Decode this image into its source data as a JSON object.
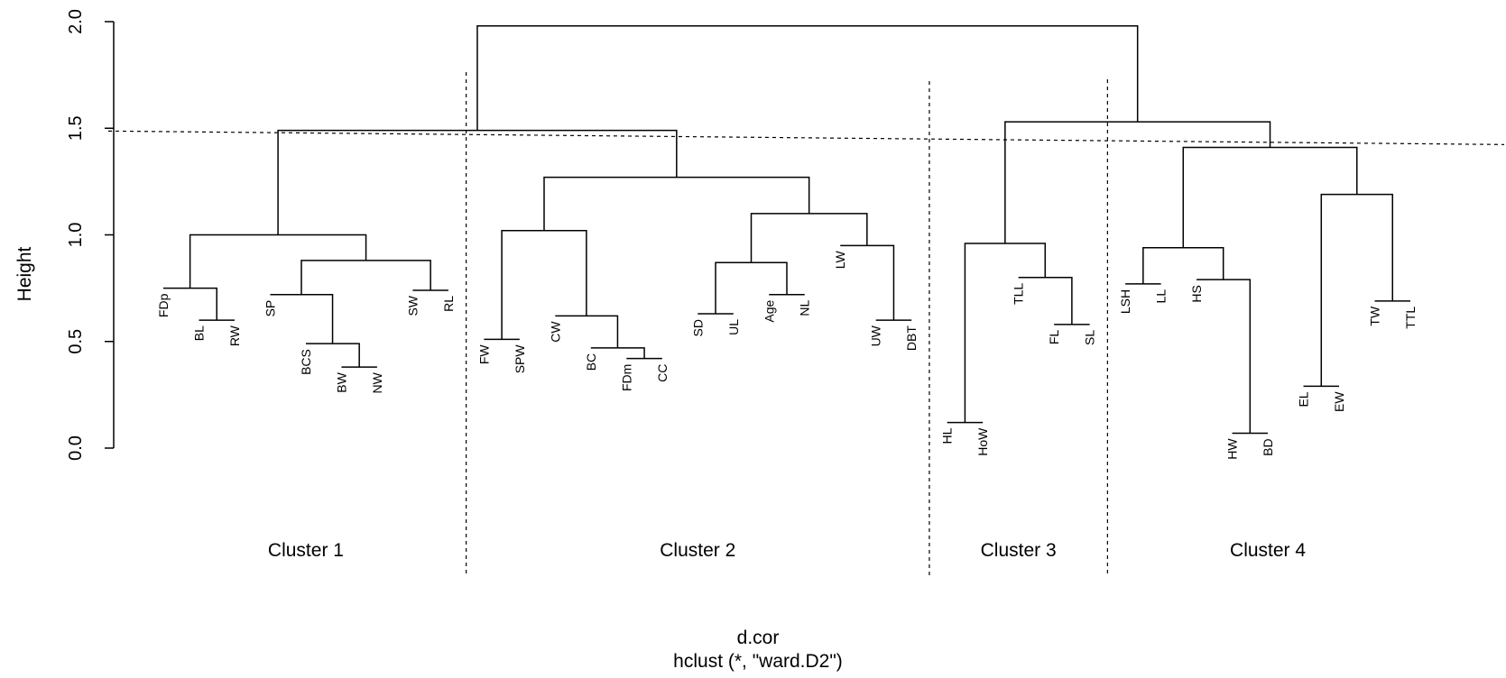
{
  "chart_data": {
    "type": "dendrogram",
    "ylabel": "Height",
    "ylim": [
      0,
      2.0
    ],
    "yticks": [
      0.0,
      0.5,
      1.0,
      1.5,
      2.0
    ],
    "ytick_labels": [
      "0.0",
      "0.5",
      "1.0",
      "1.5",
      "2.0"
    ],
    "cut_height": 1.47,
    "leaves": [
      {
        "label": "FDp",
        "h": 0.75
      },
      {
        "label": "BL",
        "h": 0.6
      },
      {
        "label": "RW",
        "h": 0.6
      },
      {
        "label": "SP",
        "h": 0.72
      },
      {
        "label": "BCS",
        "h": 0.49
      },
      {
        "label": "BW",
        "h": 0.38
      },
      {
        "label": "NW",
        "h": 0.38
      },
      {
        "label": "SW",
        "h": 0.74
      },
      {
        "label": "RL",
        "h": 0.74
      },
      {
        "label": "FW",
        "h": 0.51
      },
      {
        "label": "SPW",
        "h": 0.51
      },
      {
        "label": "CW",
        "h": 0.62
      },
      {
        "label": "BC",
        "h": 0.47
      },
      {
        "label": "FDm",
        "h": 0.42
      },
      {
        "label": "CC",
        "h": 0.42
      },
      {
        "label": "SD",
        "h": 0.63
      },
      {
        "label": "UL",
        "h": 0.63
      },
      {
        "label": "Age",
        "h": 0.72
      },
      {
        "label": "NL",
        "h": 0.72
      },
      {
        "label": "LW",
        "h": 0.95
      },
      {
        "label": "UW",
        "h": 0.6
      },
      {
        "label": "DBT",
        "h": 0.6
      },
      {
        "label": "HL",
        "h": 0.12
      },
      {
        "label": "HoW",
        "h": 0.12
      },
      {
        "label": "TLL",
        "h": 0.8
      },
      {
        "label": "FL",
        "h": 0.58
      },
      {
        "label": "SL",
        "h": 0.58
      },
      {
        "label": "LSH",
        "h": 0.77
      },
      {
        "label": "LL",
        "h": 0.77
      },
      {
        "label": "HS",
        "h": 0.79
      },
      {
        "label": "HW",
        "h": 0.07
      },
      {
        "label": "BD",
        "h": 0.07
      },
      {
        "label": "EL",
        "h": 0.29
      },
      {
        "label": "EW",
        "h": 0.29
      },
      {
        "label": "TW",
        "h": 0.69
      },
      {
        "label": "TTL",
        "h": 0.69
      }
    ],
    "merges": [
      {
        "a": "L1",
        "b": "L2",
        "h": 0.6
      },
      {
        "a": "L0",
        "b": "M0",
        "h": 0.75
      },
      {
        "a": "L5",
        "b": "L6",
        "h": 0.38
      },
      {
        "a": "L4",
        "b": "M2",
        "h": 0.49
      },
      {
        "a": "L3",
        "b": "M3",
        "h": 0.72
      },
      {
        "a": "L7",
        "b": "L8",
        "h": 0.74
      },
      {
        "a": "M4",
        "b": "M5",
        "h": 0.88
      },
      {
        "a": "M1",
        "b": "M6",
        "h": 1.0
      },
      {
        "a": "L9",
        "b": "L10",
        "h": 0.51
      },
      {
        "a": "L13",
        "b": "L14",
        "h": 0.42
      },
      {
        "a": "L12",
        "b": "M9",
        "h": 0.47
      },
      {
        "a": "L11",
        "b": "M10",
        "h": 0.62
      },
      {
        "a": "M8",
        "b": "M11",
        "h": 1.02
      },
      {
        "a": "L15",
        "b": "L16",
        "h": 0.63
      },
      {
        "a": "L17",
        "b": "L18",
        "h": 0.72
      },
      {
        "a": "M13",
        "b": "M14",
        "h": 0.87
      },
      {
        "a": "L20",
        "b": "L21",
        "h": 0.6
      },
      {
        "a": "L19",
        "b": "M16",
        "h": 0.95
      },
      {
        "a": "M15",
        "b": "M17",
        "h": 1.1
      },
      {
        "a": "M12",
        "b": "M18",
        "h": 1.27
      },
      {
        "a": "M7",
        "b": "M19",
        "h": 1.49
      },
      {
        "a": "L22",
        "b": "L23",
        "h": 0.12
      },
      {
        "a": "L25",
        "b": "L26",
        "h": 0.58
      },
      {
        "a": "L24",
        "b": "M22",
        "h": 0.8
      },
      {
        "a": "M21",
        "b": "M23",
        "h": 0.96
      },
      {
        "a": "L27",
        "b": "L28",
        "h": 0.77
      },
      {
        "a": "L30",
        "b": "L31",
        "h": 0.07
      },
      {
        "a": "L29",
        "b": "M26",
        "h": 0.79
      },
      {
        "a": "M25",
        "b": "M27",
        "h": 0.94
      },
      {
        "a": "L32",
        "b": "L33",
        "h": 0.29
      },
      {
        "a": "L34",
        "b": "L35",
        "h": 0.69
      },
      {
        "a": "M29",
        "b": "M30",
        "h": 1.19
      },
      {
        "a": "M28",
        "b": "M31",
        "h": 1.41
      },
      {
        "a": "M24",
        "b": "M32",
        "h": 1.53
      },
      {
        "a": "M20",
        "b": "M33",
        "h": 1.98
      }
    ],
    "clusters": [
      {
        "label": "Cluster 1",
        "from": 0,
        "to": 8
      },
      {
        "label": "Cluster 2",
        "from": 9,
        "to": 21
      },
      {
        "label": "Cluster 3",
        "from": 22,
        "to": 26
      },
      {
        "label": "Cluster 4",
        "from": 27,
        "to": 35
      }
    ],
    "footer_line1": "d.cor",
    "footer_line2": "hclust (*, \"ward.D2\")"
  }
}
